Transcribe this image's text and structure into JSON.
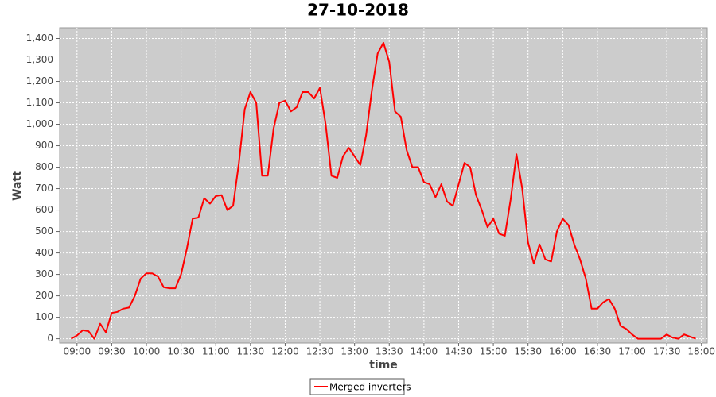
{
  "chart_data": {
    "type": "line",
    "title": "27-10-2018",
    "x_label": "time",
    "y_label": "Watt",
    "x": [
      "08:55",
      "09:00",
      "09:05",
      "09:10",
      "09:15",
      "09:20",
      "09:25",
      "09:30",
      "09:35",
      "09:40",
      "09:45",
      "09:50",
      "09:55",
      "10:00",
      "10:05",
      "10:10",
      "10:15",
      "10:20",
      "10:25",
      "10:30",
      "10:35",
      "10:40",
      "10:45",
      "10:50",
      "10:55",
      "11:00",
      "11:05",
      "11:10",
      "11:15",
      "11:20",
      "11:25",
      "11:30",
      "11:35",
      "11:40",
      "11:45",
      "11:50",
      "11:55",
      "12:00",
      "12:05",
      "12:10",
      "12:15",
      "12:20",
      "12:25",
      "12:30",
      "12:35",
      "12:40",
      "12:45",
      "12:50",
      "12:55",
      "13:00",
      "13:05",
      "13:10",
      "13:15",
      "13:20",
      "13:25",
      "13:30",
      "13:35",
      "13:40",
      "13:45",
      "13:50",
      "13:55",
      "14:00",
      "14:05",
      "14:10",
      "14:15",
      "14:20",
      "14:25",
      "14:30",
      "14:35",
      "14:40",
      "14:45",
      "14:50",
      "14:55",
      "15:00",
      "15:05",
      "15:10",
      "15:15",
      "15:20",
      "15:25",
      "15:30",
      "15:35",
      "15:40",
      "15:45",
      "15:50",
      "15:55",
      "16:00",
      "16:05",
      "16:10",
      "16:15",
      "16:20",
      "16:25",
      "16:30",
      "16:35",
      "16:40",
      "16:45",
      "16:50",
      "16:55",
      "17:00",
      "17:05",
      "17:10",
      "17:15",
      "17:20",
      "17:25",
      "17:30",
      "17:35",
      "17:40",
      "17:45",
      "17:50",
      "17:55"
    ],
    "series": [
      {
        "name": "Merged inverters",
        "color": "#ff0000",
        "values": [
          0,
          15,
          40,
          35,
          0,
          70,
          30,
          120,
          125,
          140,
          145,
          200,
          280,
          305,
          305,
          290,
          240,
          235,
          235,
          300,
          420,
          560,
          565,
          655,
          630,
          665,
          670,
          600,
          620,
          820,
          1070,
          1150,
          1100,
          760,
          760,
          980,
          1100,
          1110,
          1060,
          1080,
          1150,
          1150,
          1120,
          1170,
          1000,
          760,
          750,
          850,
          890,
          850,
          810,
          950,
          1160,
          1330,
          1380,
          1290,
          1060,
          1035,
          880,
          800,
          800,
          730,
          720,
          660,
          720,
          640,
          620,
          720,
          820,
          800,
          670,
          600,
          520,
          560,
          490,
          480,
          650,
          860,
          700,
          450,
          350,
          440,
          370,
          360,
          500,
          560,
          530,
          440,
          370,
          280,
          140,
          140,
          170,
          185,
          140,
          60,
          45,
          20,
          0,
          0,
          0,
          0,
          0,
          20,
          5,
          0,
          20,
          10,
          0
        ]
      }
    ],
    "xlim": [
      "08:45",
      "18:05"
    ],
    "xticks": [
      "09:00",
      "09:30",
      "10:00",
      "10:30",
      "11:00",
      "11:30",
      "12:00",
      "12:30",
      "13:00",
      "13:30",
      "14:00",
      "14:30",
      "15:00",
      "15:30",
      "16:00",
      "16:30",
      "17:00",
      "17:30",
      "18:00"
    ],
    "ylim": [
      -20,
      1450
    ],
    "yticks": [
      0,
      100,
      200,
      300,
      400,
      500,
      600,
      700,
      800,
      900,
      {
        "value": 1000,
        "label": "1,000"
      },
      {
        "value": 1100,
        "label": "1,100"
      },
      {
        "value": 1200,
        "label": "1,200"
      },
      {
        "value": 1300,
        "label": "1,300"
      },
      {
        "value": 1400,
        "label": "1,400"
      }
    ],
    "grid": true,
    "legend": "bottom"
  }
}
